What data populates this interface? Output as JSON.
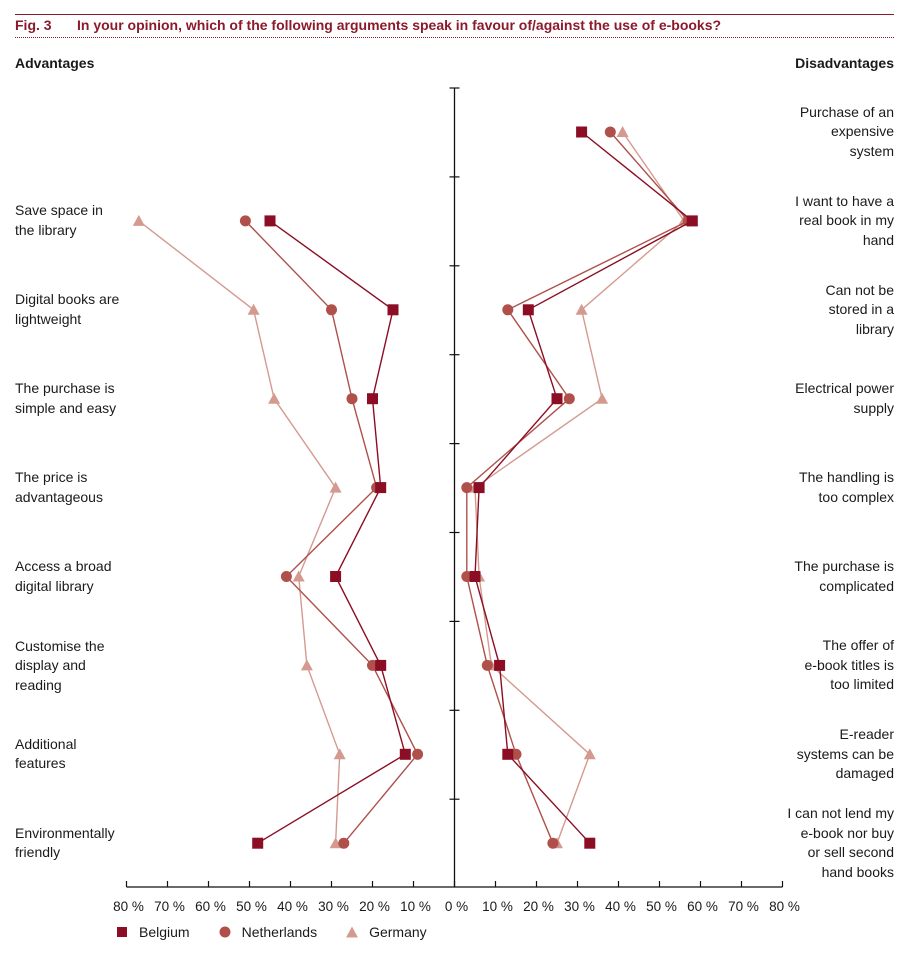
{
  "figure": {
    "number": "Fig. 3",
    "title": "In your opinion, which of the following arguments speak in favour of/against the use of e-books?"
  },
  "chart_data": {
    "type": "line",
    "title": "In your opinion, which of the following arguments speak in favour of/against the use of e-books?",
    "orientation": "horizontal-mirrored",
    "left_panel": {
      "heading": "Advantages",
      "categories": [
        "",
        "Save space in the library",
        "Digital books are lightweight",
        "The purchase is simple and easy",
        "The price is advantageous",
        "Access a broad digital library",
        "Customise the display and reading",
        "Additional features",
        "Environmentally friendly"
      ],
      "series": [
        {
          "name": "Belgium",
          "values": [
            null,
            45,
            15,
            20,
            18,
            29,
            18,
            12,
            48
          ]
        },
        {
          "name": "Netherlands",
          "values": [
            null,
            51,
            30,
            25,
            19,
            41,
            20,
            9,
            27
          ]
        },
        {
          "name": "Germany",
          "values": [
            null,
            77,
            49,
            44,
            29,
            38,
            36,
            28,
            29
          ]
        }
      ]
    },
    "right_panel": {
      "heading": "Disadvantages",
      "categories": [
        "Purchase of an expensive system",
        "I want to have a real book in my hand",
        "Can not be stored in a library",
        "Electrical power supply",
        "The handling is too complex",
        "The purchase is complicated",
        "The offer of e-book titles is too limited",
        "E-reader systems can be damaged",
        "I can not lend my e-book nor buy or sell second hand books"
      ],
      "series": [
        {
          "name": "Belgium",
          "values": [
            31,
            58,
            18,
            25,
            6,
            5,
            11,
            13,
            33
          ]
        },
        {
          "name": "Netherlands",
          "values": [
            38,
            57,
            13,
            28,
            3,
            3,
            8,
            15,
            24
          ]
        },
        {
          "name": "Germany",
          "values": [
            41,
            56,
            31,
            36,
            5,
            6,
            9,
            33,
            25
          ]
        }
      ]
    },
    "x_ticks": [
      "80 %",
      "70 %",
      "60 %",
      "50 %",
      "40 %",
      "30 %",
      "20 %",
      "10 %",
      "0 %",
      "10 %",
      "20 %",
      "30 %",
      "40 %",
      "50 %",
      "60 %",
      "70 %",
      "80 %"
    ],
    "xlim": [
      0,
      80
    ],
    "xlabel": "",
    "ylabel": "",
    "grid": false,
    "legend": {
      "placement": "bottom-left",
      "entries": [
        {
          "name": "Belgium",
          "marker": "square",
          "color": "#8b0e24"
        },
        {
          "name": "Netherlands",
          "marker": "circle",
          "color": "#b0504a"
        },
        {
          "name": "Germany",
          "marker": "triangle",
          "color": "#d49a90"
        }
      ]
    }
  },
  "labels": {
    "left": [
      [
        "Save space in",
        "the library"
      ],
      [
        "Digital books are",
        "lightweight"
      ],
      [
        "The purchase is",
        "simple and easy"
      ],
      [
        "The price is",
        "advantageous"
      ],
      [
        "Access a broad",
        "digital library"
      ],
      [
        "Customise the",
        "display and",
        "reading"
      ],
      [
        "Additional",
        "features"
      ],
      [
        "Environmentally",
        "friendly"
      ]
    ],
    "right": [
      [
        "Purchase of an",
        "expensive",
        "system"
      ],
      [
        "I want to have a",
        "real book in my",
        "hand"
      ],
      [
        "Can not be",
        "stored in a",
        "library"
      ],
      [
        "Electrical power",
        "supply"
      ],
      [
        "The handling is",
        "too complex"
      ],
      [
        "The purchase is",
        "complicated"
      ],
      [
        "The offer of",
        "e-book titles is",
        "too limited"
      ],
      [
        "E-reader",
        "systems can be",
        "damaged"
      ],
      [
        "I can not lend my",
        "e-book nor buy",
        "or sell second",
        "hand books"
      ]
    ]
  }
}
